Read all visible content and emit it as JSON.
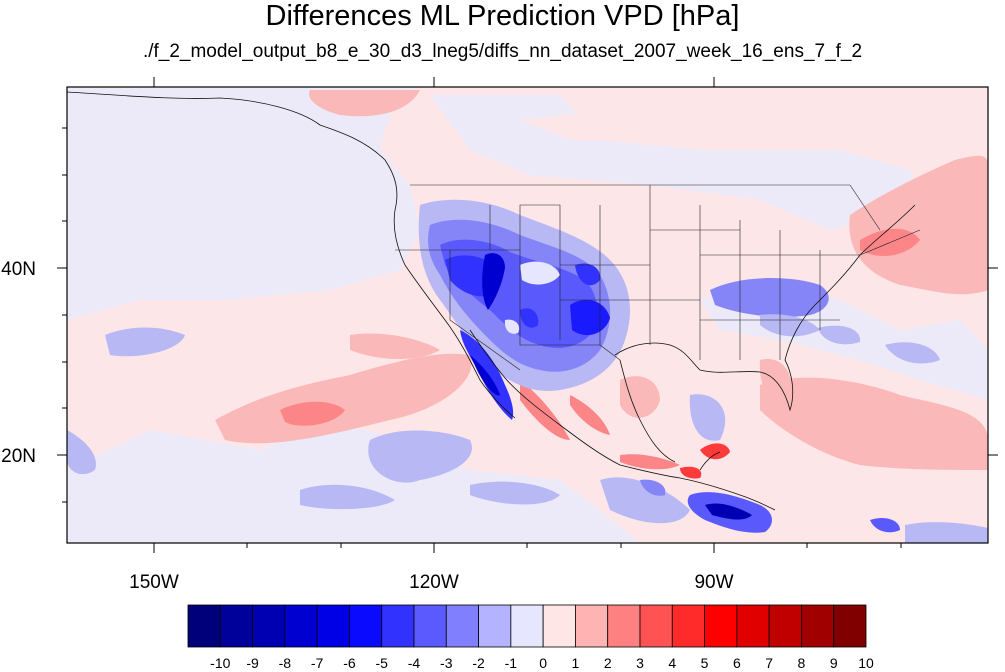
{
  "header": {
    "title": "Differences ML Prediction VPD [hPa]",
    "subtitle": "./f_2_model_output_b8_e_30_d3_lneg5/diffs_nn_dataset_2007_week_16_ens_7_f_2"
  },
  "axes": {
    "lon_labels": [
      "150W",
      "120W",
      "90W"
    ],
    "lat_labels": [
      "40N",
      "20N"
    ]
  },
  "colorbar": {
    "labels": [
      "-10",
      "-9",
      "-8",
      "-7",
      "-6",
      "-5",
      "-4",
      "-3",
      "-2",
      "-1",
      "0",
      "1",
      "2",
      "3",
      "4",
      "5",
      "6",
      "7",
      "8",
      "9",
      "10"
    ],
    "colors": [
      "#00007a",
      "#00009a",
      "#0000b3",
      "#0000d0",
      "#0000e6",
      "#0a0aff",
      "#3232ff",
      "#5a5aff",
      "#8080ff",
      "#b3b3ff",
      "#e6e6ff",
      "#ffe6e6",
      "#ffb3b3",
      "#ff8080",
      "#ff5252",
      "#ff2a2a",
      "#ff0000",
      "#e00000",
      "#c00000",
      "#a00000",
      "#800000"
    ]
  },
  "map": {
    "ocean_background": "#fce8ea",
    "land_background": "#eceaf8",
    "lon_range": [
      -160,
      -62
    ],
    "lat_range": [
      10,
      59
    ]
  }
}
